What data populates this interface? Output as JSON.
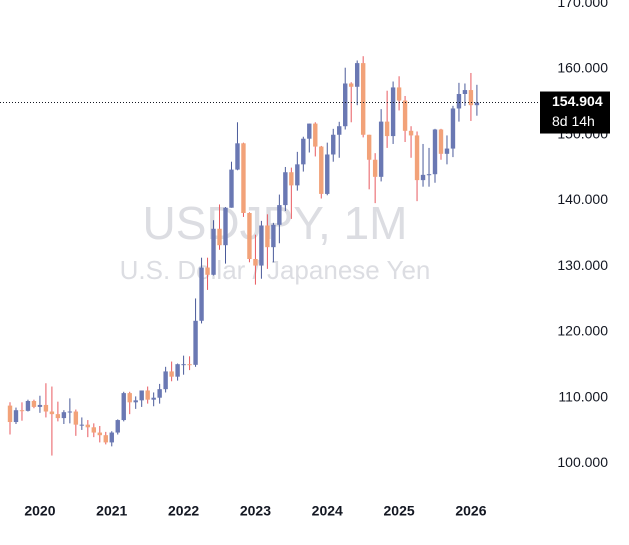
{
  "chart_data": {
    "type": "candlestick",
    "title": "USDJPY, 1M",
    "subtitle": "U.S. Dollar / Japanese Yen",
    "countdown": "8d 14h",
    "up_color": "#6a78b3",
    "down_color": "#f2a279",
    "up_wick_color": "#4a5a9a",
    "down_wick_color": "#e8595f",
    "categories": [
      null,
      null,
      null,
      null,
      null,
      "2020",
      null,
      null,
      null,
      null,
      null,
      null,
      null,
      null,
      null,
      null,
      null,
      "2021",
      null,
      null,
      null,
      null,
      null,
      null,
      null,
      null,
      null,
      null,
      null,
      "2022",
      null,
      null,
      null,
      null,
      null,
      null,
      null,
      null,
      null,
      null,
      null,
      "2023",
      null,
      null,
      null,
      null,
      null,
      null,
      null,
      null,
      null,
      null,
      null,
      "2024",
      null,
      null,
      null,
      null,
      null,
      null,
      null,
      null,
      null,
      null,
      null,
      "2025",
      null,
      null,
      null,
      null,
      null,
      null,
      null,
      null,
      null,
      null,
      null,
      "2026",
      null
    ],
    "open": [
      108.8,
      106.3,
      108.1,
      108.0,
      109.5,
      108.6,
      108.9,
      107.9,
      107.5,
      106.9,
      107.8,
      107.9,
      105.9,
      105.9,
      105.5,
      104.7,
      104.3,
      103.2,
      104.7,
      106.6,
      110.7,
      109.3,
      109.6,
      111.1,
      109.7,
      110.0,
      111.3,
      114.0,
      113.2,
      115.1,
      115.1,
      115.0,
      121.7,
      129.8,
      128.7,
      135.7,
      133.2,
      138.9,
      144.7,
      148.7,
      138.1,
      131.1,
      130.1,
      136.2,
      132.9,
      136.3,
      139.3,
      144.3,
      142.3,
      145.5,
      149.4,
      151.7,
      148.2,
      141.0,
      147.0,
      150.0,
      151.3,
      157.8,
      157.3,
      160.9,
      150.0,
      146.2,
      143.6,
      152.0,
      149.8,
      157.2,
      155.2,
      150.6,
      149.9,
      143.1,
      143.9,
      144.0,
      150.8,
      147.1,
      147.9,
      154.0,
      156.2,
      156.8,
      154.5
    ],
    "high": [
      109.3,
      108.5,
      109.3,
      109.7,
      109.7,
      110.3,
      112.2,
      111.7,
      109.4,
      108.1,
      109.9,
      108.2,
      107.0,
      106.6,
      106.1,
      105.7,
      104.8,
      104.9,
      106.7,
      110.9,
      110.9,
      110.2,
      111.1,
      111.7,
      110.8,
      112.1,
      114.7,
      115.5,
      115.2,
      116.4,
      116.3,
      125.1,
      131.3,
      131.3,
      137.0,
      139.4,
      139.0,
      145.9,
      151.9,
      148.8,
      138.2,
      134.8,
      136.9,
      137.9,
      136.6,
      140.9,
      145.1,
      145.0,
      147.4,
      149.7,
      151.7,
      151.9,
      148.3,
      148.8,
      150.9,
      151.97,
      160.2,
      157.99,
      161.3,
      161.95,
      150.0,
      147.2,
      153.9,
      156.7,
      158.1,
      158.9,
      155.9,
      151.3,
      150.5,
      148.6,
      148.0,
      150.9,
      150.9,
      149.9,
      154.4,
      157.9,
      157.8,
      159.4,
      157.6
    ],
    "low": [
      104.4,
      106.0,
      106.5,
      107.9,
      108.4,
      107.7,
      107.0,
      101.2,
      106.4,
      106.0,
      106.1,
      104.2,
      105.1,
      104.0,
      104.0,
      103.2,
      102.9,
      102.6,
      104.4,
      106.4,
      107.5,
      108.3,
      108.6,
      109.1,
      108.7,
      109.1,
      110.8,
      112.5,
      112.6,
      113.5,
      114.2,
      114.7,
      121.3,
      126.4,
      128.6,
      132.5,
      130.4,
      138.9,
      144.6,
      137.5,
      130.6,
      127.2,
      128.1,
      129.6,
      130.6,
      133.5,
      138.4,
      137.2,
      141.5,
      144.4,
      147.3,
      146.7,
      140.3,
      140.8,
      145.9,
      146.5,
      150.8,
      151.9,
      154.5,
      149.6,
      141.7,
      139.6,
      142.9,
      148.0,
      148.6,
      153.7,
      148.9,
      146.5,
      139.9,
      142.1,
      142.1,
      142.7,
      146.2,
      145.5,
      146.6,
      152.0,
      154.4,
      152.1,
      152.9
    ],
    "close": [
      106.3,
      108.1,
      108.0,
      109.5,
      108.6,
      108.9,
      107.9,
      107.5,
      106.9,
      107.8,
      107.9,
      105.9,
      105.9,
      105.5,
      104.7,
      104.3,
      103.2,
      104.7,
      106.6,
      110.7,
      109.3,
      109.6,
      111.1,
      109.7,
      110.0,
      111.3,
      114.0,
      113.2,
      115.1,
      115.1,
      115.0,
      121.7,
      129.8,
      128.7,
      135.7,
      133.2,
      138.9,
      144.7,
      148.7,
      138.1,
      131.1,
      130.1,
      136.2,
      132.9,
      136.3,
      139.3,
      144.3,
      142.3,
      145.5,
      149.4,
      151.7,
      148.2,
      141.0,
      147.0,
      150.0,
      151.3,
      157.8,
      157.3,
      160.9,
      150.0,
      146.2,
      143.6,
      152.0,
      149.8,
      157.2,
      155.2,
      150.6,
      149.9,
      143.1,
      143.9,
      144.0,
      150.8,
      147.1,
      147.9,
      154.0,
      156.2,
      156.8,
      154.5,
      154.904
    ],
    "ylim": [
      95.2,
      170.5
    ],
    "yticks": [
      {
        "value": 100,
        "label": "100.000"
      },
      {
        "value": 110,
        "label": "110.000"
      },
      {
        "value": 120,
        "label": "120.000"
      },
      {
        "value": 130,
        "label": "130.000"
      },
      {
        "value": 140,
        "label": "140.000"
      },
      {
        "value": 150,
        "label": "150.000"
      },
      {
        "value": 160,
        "label": "160.000"
      },
      {
        "value": 170,
        "label": "170.000"
      }
    ]
  }
}
